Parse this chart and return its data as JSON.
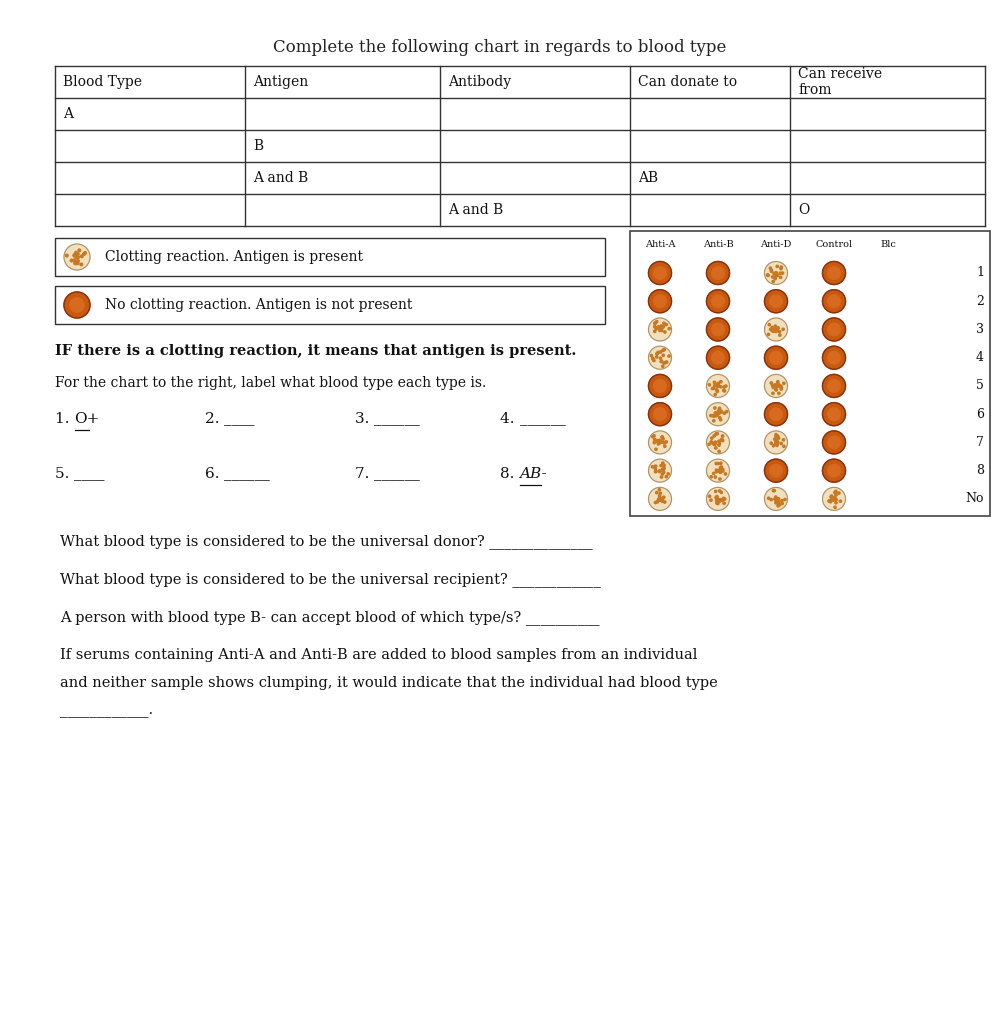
{
  "title": "Complete the following chart in regards to blood type",
  "table_headers": [
    "Blood Type",
    "Antigen",
    "Antibody",
    "Can donate to",
    "Can receive\nfrom"
  ],
  "table_rows": [
    [
      "A",
      "",
      "",
      "",
      ""
    ],
    [
      "",
      "B",
      "",
      "",
      ""
    ],
    [
      "",
      "A and B",
      "",
      "AB",
      ""
    ],
    [
      "",
      "",
      "A and B",
      "",
      "O"
    ]
  ],
  "legend_clotting_text": "Clotting reaction. Antigen is present",
  "legend_no_clotting_text": "No clotting reaction. Antigen is not present",
  "bold_text": "IF there is a clotting reaction, it means that antigen is present.",
  "normal_text": "For the chart to the right, label what blood type each type is.",
  "labels_row1_prefix": [
    "1. ",
    "2. ",
    "3. ",
    "4. "
  ],
  "labels_row1_answer": [
    "O+",
    "____",
    "______",
    "______"
  ],
  "labels_row1_underline": [
    true,
    false,
    false,
    false
  ],
  "labels_row2_prefix": [
    "5. ",
    "6. ",
    "7. ",
    "8. "
  ],
  "labels_row2_answer": [
    "____",
    "______",
    "______",
    "AB-"
  ],
  "labels_row2_underline": [
    false,
    false,
    false,
    true
  ],
  "labels_row2_italic": [
    false,
    false,
    false,
    true
  ],
  "dot_grid_headers": [
    "Ahti-A",
    "Anti-B",
    "Anti-D",
    "Control",
    "Blc"
  ],
  "dot_grid": [
    [
      "solid",
      "solid",
      "dotted",
      "solid"
    ],
    [
      "solid",
      "solid",
      "solid",
      "solid"
    ],
    [
      "dotted",
      "solid",
      "dotted",
      "solid"
    ],
    [
      "dotted",
      "solid",
      "solid",
      "solid"
    ],
    [
      "solid",
      "dotted",
      "dotted",
      "solid"
    ],
    [
      "solid",
      "dotted",
      "solid",
      "solid"
    ],
    [
      "dotted",
      "dotted",
      "dotted",
      "solid"
    ],
    [
      "dotted",
      "dotted",
      "solid",
      "solid"
    ],
    [
      "dotted",
      "dotted",
      "dotted",
      "dotted"
    ]
  ],
  "dot_row_labels": [
    "1",
    "2",
    "3",
    "4",
    "5",
    "6",
    "7",
    "8",
    "No"
  ],
  "questions": [
    "What blood type is considered to be the universal donor? ______________",
    "What blood type is considered to be the universal recipient? ____________",
    "A person with blood type B- can accept blood of which type/s? __________",
    "If serums containing Anti-A and Anti-B are added to blood samples from an individual\nand neither sample shows clumping, it would indicate that the individual had blood type\n____________."
  ],
  "solid_color": "#c85a10",
  "solid_inner": "#d86a20",
  "solid_edge": "#8b3010",
  "dotted_bg": "#f0e0c0",
  "dotted_edge": "#b09060",
  "dotted_dots": "#c87820"
}
